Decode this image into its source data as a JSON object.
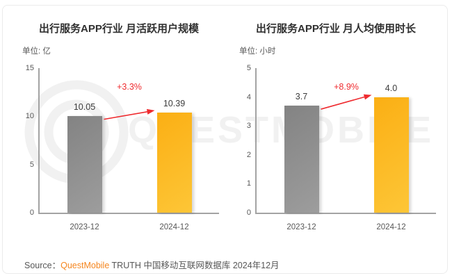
{
  "page": {
    "background": "#ffffff",
    "border_color": "#ebebeb"
  },
  "watermark": {
    "text": "QUESTMOBILE",
    "logo": "questmobile-q-logo",
    "color": "#f1f1f1"
  },
  "source": {
    "prefix": "Source：",
    "brand": "QuestMobile",
    "rest": " TRUTH 中国移动互联网数据库 2024年12月",
    "brand_color": "#f5861f"
  },
  "colors": {
    "bar_previous": "#8c8c8c",
    "bar_current": "#fcb817",
    "increase_red": "#ef2b2f",
    "axis": "#a3a3a3",
    "title_text": "#303030",
    "secondary_text": "#575757"
  },
  "chart_data": [
    {
      "type": "bar",
      "title": "出行服务APP行业 月活跃用户规模",
      "unit_label": "单位: 亿",
      "categories": [
        "2023-12",
        "2024-12"
      ],
      "values": [
        10.05,
        10.39
      ],
      "value_labels": [
        "10.05",
        "10.39"
      ],
      "series_roles": [
        "previous-period",
        "current-period"
      ],
      "bar_colors": [
        "#8c8c8c",
        "#fcb817"
      ],
      "change_label": "+3.3%",
      "xlabel": "",
      "ylabel": "亿",
      "ylim": [
        0,
        15
      ],
      "yticks": [
        0,
        5,
        10,
        15
      ],
      "grid": false,
      "legend": "none"
    },
    {
      "type": "bar",
      "title": "出行服务APP行业 月人均使用时长",
      "unit_label": "单位: 小时",
      "categories": [
        "2023-12",
        "2024-12"
      ],
      "values": [
        3.7,
        4.0
      ],
      "value_labels": [
        "3.7",
        "4.0"
      ],
      "series_roles": [
        "previous-period",
        "current-period"
      ],
      "bar_colors": [
        "#8c8c8c",
        "#fcb817"
      ],
      "change_label": "+8.9%",
      "xlabel": "",
      "ylabel": "小时",
      "ylim": [
        0,
        5
      ],
      "yticks": [
        0,
        1,
        2,
        3,
        4,
        5
      ],
      "grid": false,
      "legend": "none"
    }
  ]
}
